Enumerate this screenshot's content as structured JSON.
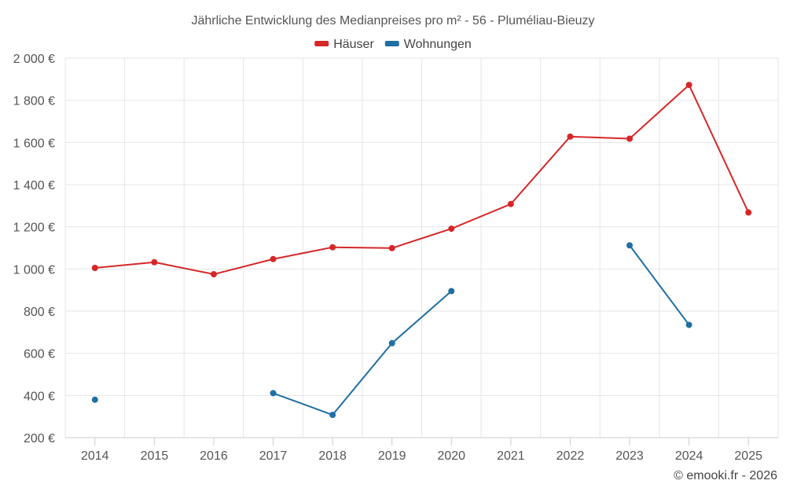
{
  "chart_data": {
    "type": "line",
    "title": "Jährliche Entwicklung des Medianpreises pro m² - 56 - Pluméliau-Bieuzy",
    "xlabel": "",
    "ylabel": "",
    "categories": [
      "2014",
      "2015",
      "2016",
      "2017",
      "2018",
      "2019",
      "2020",
      "2021",
      "2022",
      "2023",
      "2024",
      "2025"
    ],
    "ylim": [
      200,
      2000
    ],
    "yticks": [
      200,
      400,
      600,
      800,
      1000,
      1200,
      1400,
      1600,
      1800,
      2000
    ],
    "ytick_labels": [
      "200 €",
      "400 €",
      "600 €",
      "800 €",
      "1 000 €",
      "1 200 €",
      "1 400 €",
      "1 600 €",
      "1 800 €",
      "2 000 €"
    ],
    "grid": true,
    "legend_position": "top-center",
    "series": [
      {
        "name": "Häuser",
        "color": "#d62728",
        "values": [
          1005,
          1032,
          975,
          1047,
          1103,
          1099,
          1191,
          1308,
          1628,
          1618,
          1873,
          1268
        ]
      },
      {
        "name": "Wohnungen",
        "color": "#1f6fa3",
        "values": [
          380,
          null,
          null,
          411,
          308,
          648,
          895,
          null,
          null,
          1112,
          735,
          null
        ]
      }
    ]
  },
  "credit": "© emooki.fr - 2026"
}
